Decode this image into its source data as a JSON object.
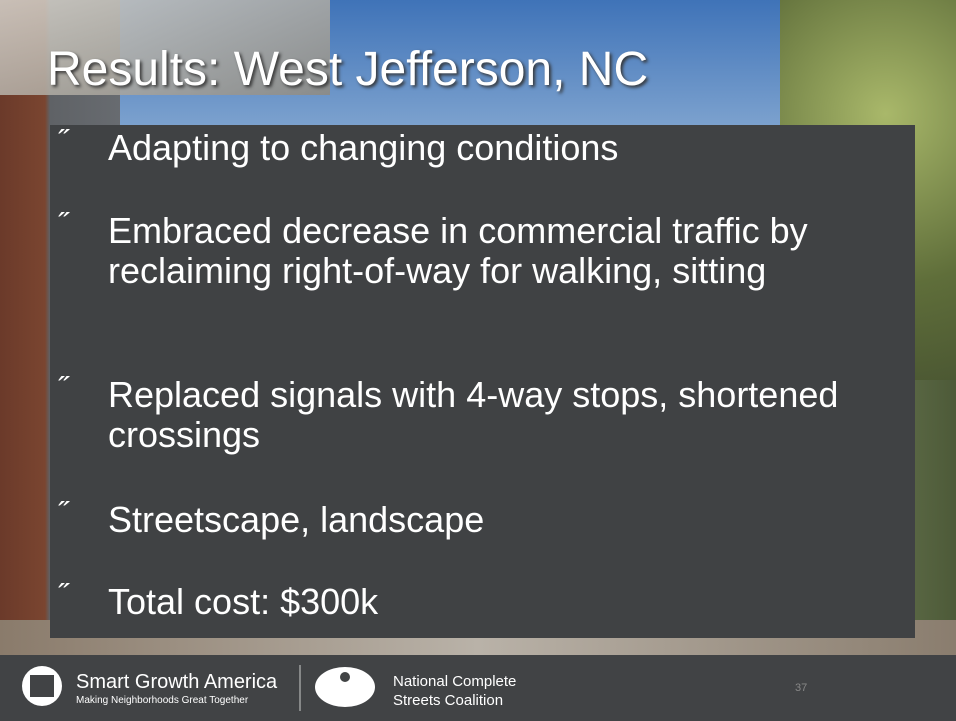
{
  "slide": {
    "title": "Results: West Jefferson, NC",
    "bullet": "˝",
    "bullets": [
      "Adapting to changing conditions",
      "Embraced decrease in commercial traffic by reclaiming right-of-way for walking, sitting",
      "Replaced signals with 4-way stops, shortened crossings",
      "Streetscape, landscape",
      "Total cost: $300k"
    ]
  },
  "footer": {
    "logo1": {
      "name": "Smart Growth America",
      "tagline": "Making Neighborhoods Great Together"
    },
    "logo2": {
      "line1": "National Complete",
      "line2": "Streets Coalition"
    },
    "page_number": "37"
  }
}
